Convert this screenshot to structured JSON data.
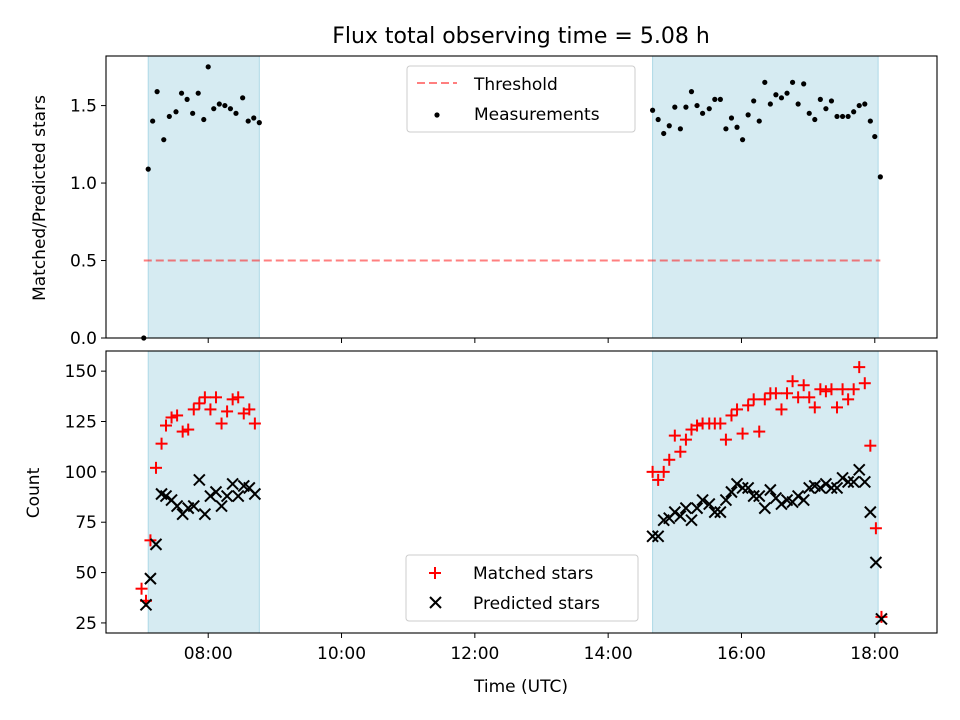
{
  "colors": {
    "shade": "#add8e6",
    "threshold": "#ff0000",
    "measurements": "#000000",
    "matched": "#ff0000",
    "predicted": "#000000"
  },
  "chart_data": [
    {
      "type": "scatter",
      "title": "Flux total observing time = 5.08 h",
      "xlabel": "",
      "ylabel": "Matched/Predicted stars",
      "xlim": [
        "06:28",
        "18:56"
      ],
      "ylim": [
        0,
        1.82
      ],
      "yticks": [
        "0.0",
        "0.5",
        "1.0",
        "1.5"
      ],
      "shaded_intervals": [
        [
          "07:06",
          "08:46"
        ],
        [
          "14:40",
          "18:03"
        ]
      ],
      "threshold": 0.5,
      "threshold_x": [
        "07:02",
        "18:05"
      ],
      "legend": {
        "position": "upper-center",
        "entries": [
          "Threshold",
          "Measurements"
        ]
      },
      "series": [
        {
          "name": "Measurements",
          "points": [
            [
              "07:02",
              0.0
            ],
            [
              "07:06",
              1.09
            ],
            [
              "07:10",
              1.4
            ],
            [
              "07:14",
              1.59
            ],
            [
              "07:20",
              1.28
            ],
            [
              "07:25",
              1.43
            ],
            [
              "07:31",
              1.46
            ],
            [
              "07:36",
              1.58
            ],
            [
              "07:41",
              1.54
            ],
            [
              "07:46",
              1.45
            ],
            [
              "07:51",
              1.58
            ],
            [
              "07:56",
              1.41
            ],
            [
              "08:00",
              1.75
            ],
            [
              "08:05",
              1.48
            ],
            [
              "08:10",
              1.51
            ],
            [
              "08:15",
              1.5
            ],
            [
              "08:20",
              1.48
            ],
            [
              "08:25",
              1.45
            ],
            [
              "08:31",
              1.55
            ],
            [
              "08:36",
              1.4
            ],
            [
              "08:41",
              1.42
            ],
            [
              "08:46",
              1.39
            ],
            [
              "14:40",
              1.47
            ],
            [
              "14:45",
              1.41
            ],
            [
              "14:50",
              1.32
            ],
            [
              "14:55",
              1.37
            ],
            [
              "15:00",
              1.49
            ],
            [
              "15:05",
              1.35
            ],
            [
              "15:10",
              1.49
            ],
            [
              "15:15",
              1.59
            ],
            [
              "15:20",
              1.5
            ],
            [
              "15:25",
              1.45
            ],
            [
              "15:31",
              1.48
            ],
            [
              "15:36",
              1.54
            ],
            [
              "15:41",
              1.54
            ],
            [
              "15:46",
              1.35
            ],
            [
              "15:51",
              1.42
            ],
            [
              "15:56",
              1.36
            ],
            [
              "16:01",
              1.28
            ],
            [
              "16:06",
              1.44
            ],
            [
              "16:11",
              1.53
            ],
            [
              "16:16",
              1.4
            ],
            [
              "16:21",
              1.65
            ],
            [
              "16:26",
              1.51
            ],
            [
              "16:31",
              1.57
            ],
            [
              "16:36",
              1.55
            ],
            [
              "16:41",
              1.58
            ],
            [
              "16:46",
              1.65
            ],
            [
              "16:51",
              1.51
            ],
            [
              "16:56",
              1.64
            ],
            [
              "17:01",
              1.45
            ],
            [
              "17:06",
              1.41
            ],
            [
              "17:11",
              1.54
            ],
            [
              "17:16",
              1.48
            ],
            [
              "17:21",
              1.53
            ],
            [
              "17:26",
              1.43
            ],
            [
              "17:31",
              1.43
            ],
            [
              "17:36",
              1.43
            ],
            [
              "17:41",
              1.46
            ],
            [
              "17:46",
              1.5
            ],
            [
              "17:51",
              1.51
            ],
            [
              "17:56",
              1.4
            ],
            [
              "18:00",
              1.3
            ],
            [
              "18:05",
              1.04
            ]
          ]
        }
      ]
    },
    {
      "type": "scatter",
      "xlabel": "Time (UTC)",
      "ylabel": "Count",
      "xlim": [
        "06:28",
        "18:56"
      ],
      "ylim": [
        20,
        160
      ],
      "yticks": [
        "25",
        "50",
        "75",
        "100",
        "125",
        "150"
      ],
      "xticks": [
        "08:00",
        "10:00",
        "12:00",
        "14:00",
        "16:00",
        "18:00"
      ],
      "shaded_intervals": [
        [
          "07:06",
          "08:46"
        ],
        [
          "14:40",
          "18:03"
        ]
      ],
      "legend": {
        "position": "lower-center",
        "entries": [
          "Matched stars",
          "Predicted stars"
        ]
      },
      "series": [
        {
          "name": "Matched stars",
          "points": [
            [
              "07:00",
              42
            ],
            [
              "07:04",
              36
            ],
            [
              "07:08",
              66
            ],
            [
              "07:13",
              102
            ],
            [
              "07:18",
              114
            ],
            [
              "07:22",
              123
            ],
            [
              "07:27",
              127
            ],
            [
              "07:32",
              128
            ],
            [
              "07:37",
              120
            ],
            [
              "07:42",
              121
            ],
            [
              "07:47",
              131
            ],
            [
              "07:52",
              134
            ],
            [
              "07:57",
              137
            ],
            [
              "08:02",
              131
            ],
            [
              "08:07",
              137
            ],
            [
              "08:12",
              124
            ],
            [
              "08:17",
              130
            ],
            [
              "08:22",
              136
            ],
            [
              "08:27",
              137
            ],
            [
              "08:32",
              129
            ],
            [
              "08:37",
              131
            ],
            [
              "08:42",
              124
            ],
            [
              "14:40",
              100
            ],
            [
              "14:45",
              96
            ],
            [
              "14:50",
              100
            ],
            [
              "14:55",
              106
            ],
            [
              "15:00",
              118
            ],
            [
              "15:05",
              110
            ],
            [
              "15:10",
              116
            ],
            [
              "15:15",
              121
            ],
            [
              "15:20",
              123
            ],
            [
              "15:25",
              124
            ],
            [
              "15:31",
              124
            ],
            [
              "15:36",
              124
            ],
            [
              "15:41",
              124
            ],
            [
              "15:46",
              116
            ],
            [
              "15:51",
              128
            ],
            [
              "15:56",
              131
            ],
            [
              "16:01",
              119
            ],
            [
              "16:06",
              133
            ],
            [
              "16:11",
              136
            ],
            [
              "16:16",
              120
            ],
            [
              "16:21",
              136
            ],
            [
              "16:26",
              139
            ],
            [
              "16:31",
              139
            ],
            [
              "16:36",
              131
            ],
            [
              "16:41",
              139
            ],
            [
              "16:46",
              145
            ],
            [
              "16:51",
              137
            ],
            [
              "16:56",
              143
            ],
            [
              "17:01",
              137
            ],
            [
              "17:06",
              132
            ],
            [
              "17:11",
              141
            ],
            [
              "17:16",
              140
            ],
            [
              "17:21",
              141
            ],
            [
              "17:26",
              132
            ],
            [
              "17:31",
              141
            ],
            [
              "17:36",
              136
            ],
            [
              "17:41",
              141
            ],
            [
              "17:46",
              152
            ],
            [
              "17:51",
              144
            ],
            [
              "17:56",
              113
            ],
            [
              "18:01",
              72
            ],
            [
              "18:06",
              28
            ]
          ]
        },
        {
          "name": "Predicted stars",
          "points": [
            [
              "07:04",
              34
            ],
            [
              "07:08",
              47
            ],
            [
              "07:13",
              64
            ],
            [
              "07:18",
              89
            ],
            [
              "07:22",
              88
            ],
            [
              "07:27",
              86
            ],
            [
              "07:32",
              83
            ],
            [
              "07:37",
              79
            ],
            [
              "07:42",
              82
            ],
            [
              "07:47",
              83
            ],
            [
              "07:52",
              96
            ],
            [
              "07:57",
              79
            ],
            [
              "08:02",
              88
            ],
            [
              "08:07",
              90
            ],
            [
              "08:12",
              83
            ],
            [
              "08:17",
              88
            ],
            [
              "08:22",
              94
            ],
            [
              "08:27",
              88
            ],
            [
              "08:32",
              93
            ],
            [
              "08:37",
              92
            ],
            [
              "08:42",
              89
            ],
            [
              "14:40",
              68
            ],
            [
              "14:45",
              68
            ],
            [
              "14:50",
              76
            ],
            [
              "14:55",
              77
            ],
            [
              "15:00",
              80
            ],
            [
              "15:05",
              78
            ],
            [
              "15:10",
              82
            ],
            [
              "15:15",
              76
            ],
            [
              "15:20",
              82
            ],
            [
              "15:25",
              86
            ],
            [
              "15:31",
              84
            ],
            [
              "15:36",
              80
            ],
            [
              "15:41",
              80
            ],
            [
              "15:46",
              86
            ],
            [
              "15:51",
              90
            ],
            [
              "15:56",
              94
            ],
            [
              "16:01",
              92
            ],
            [
              "16:06",
              92
            ],
            [
              "16:11",
              88
            ],
            [
              "16:16",
              88
            ],
            [
              "16:21",
              82
            ],
            [
              "16:26",
              91
            ],
            [
              "16:31",
              87
            ],
            [
              "16:36",
              84
            ],
            [
              "16:41",
              86
            ],
            [
              "16:46",
              85
            ],
            [
              "16:51",
              88
            ],
            [
              "16:56",
              86
            ],
            [
              "17:01",
              92
            ],
            [
              "17:06",
              93
            ],
            [
              "17:11",
              92
            ],
            [
              "17:16",
              94
            ],
            [
              "17:21",
              92
            ],
            [
              "17:26",
              92
            ],
            [
              "17:31",
              97
            ],
            [
              "17:36",
              95
            ],
            [
              "17:41",
              95
            ],
            [
              "17:46",
              101
            ],
            [
              "17:51",
              95
            ],
            [
              "17:56",
              80
            ],
            [
              "18:01",
              55
            ],
            [
              "18:06",
              27
            ]
          ]
        }
      ]
    }
  ]
}
